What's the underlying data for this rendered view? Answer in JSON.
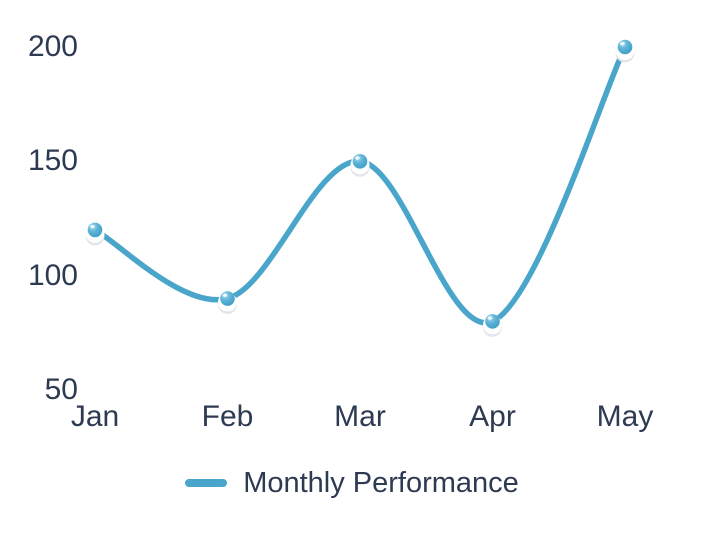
{
  "chart_data": {
    "type": "line",
    "categories": [
      "Jan",
      "Feb",
      "Mar",
      "Apr",
      "May"
    ],
    "series": [
      {
        "name": "Monthly Performance",
        "values": [
          120,
          90,
          150,
          80,
          200
        ]
      }
    ],
    "title": "",
    "xlabel": "",
    "ylabel": "",
    "ylim": [
      50,
      200
    ],
    "yticks": [
      200,
      150,
      100,
      50
    ],
    "grid": false,
    "legend_position": "bottom",
    "curve": "smooth",
    "colors": {
      "line": "#4aa5cb",
      "marker_ball_light": "#a6dbed",
      "marker_ball_mid": "#5cb3d6",
      "marker_ball_dark": "#3d9cc5",
      "marker_halo": "#ffffff",
      "marker_shadow": "#e2e6ea",
      "text": "#2d3a52",
      "background": "#ffffff"
    }
  }
}
